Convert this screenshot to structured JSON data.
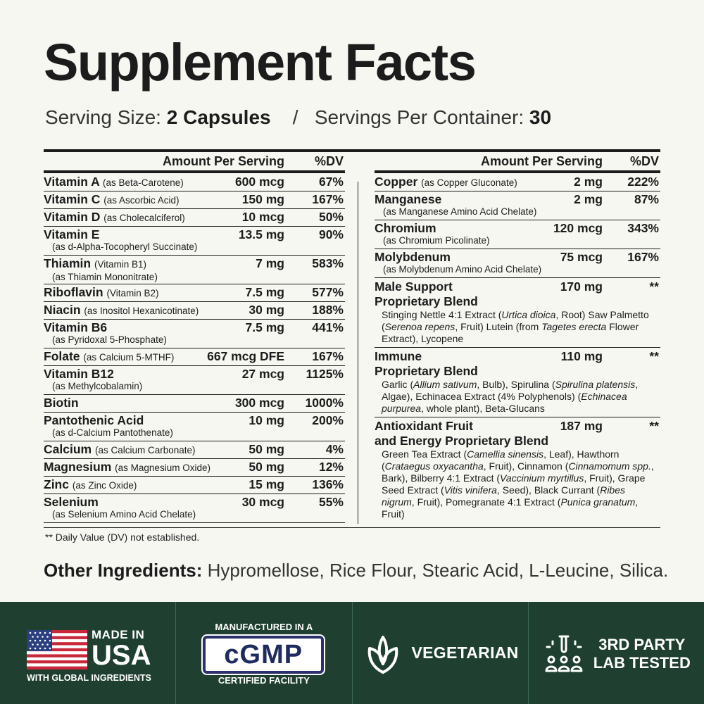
{
  "title": "Supplement Facts",
  "serving": {
    "size_label": "Serving Size: ",
    "size_value": "2 Capsules",
    "separator": "/",
    "per_container_label": "Servings Per Container: ",
    "per_container_value": "30"
  },
  "headers": {
    "amount": "Amount Per Serving",
    "dv": "%DV"
  },
  "left_rows": [
    {
      "name": "Vitamin A",
      "paren_inline": "(as Beta-Carotene)",
      "sub": "",
      "amount": "600 mcg",
      "dv": "67%"
    },
    {
      "name": "Vitamin C",
      "paren_inline": "(as Ascorbic Acid)",
      "sub": "",
      "amount": "150 mg",
      "dv": "167%"
    },
    {
      "name": "Vitamin D",
      "paren_inline": "(as Cholecalciferol)",
      "sub": "",
      "amount": "10 mcg",
      "dv": "50%"
    },
    {
      "name": "Vitamin E",
      "paren_inline": "",
      "sub": "(as d-Alpha-Tocopheryl Succinate)",
      "amount": "13.5 mg",
      "dv": "90%"
    },
    {
      "name": "Thiamin",
      "paren_inline": "(Vitamin B1)",
      "sub": "(as Thiamin Mononitrate)",
      "amount": "7 mg",
      "dv": "583%"
    },
    {
      "name": "Riboflavin",
      "paren_inline": "(Vitamin B2)",
      "sub": "",
      "amount": "7.5 mg",
      "dv": "577%"
    },
    {
      "name": "Niacin",
      "paren_inline": "(as Inositol Hexanicotinate)",
      "sub": "",
      "amount": "30 mg",
      "dv": "188%"
    },
    {
      "name": "Vitamin B6",
      "paren_inline": "",
      "sub": "(as Pyridoxal 5-Phosphate)",
      "amount": "7.5 mg",
      "dv": "441%"
    },
    {
      "name": "Folate",
      "paren_inline": "(as Calcium 5-MTHF)",
      "sub": "",
      "amount": "667 mcg DFE",
      "dv": "167%"
    },
    {
      "name": "Vitamin B12",
      "paren_inline": "",
      "sub": "(as Methylcobalamin)",
      "amount": "27 mcg",
      "dv": "1125%"
    },
    {
      "name": "Biotin",
      "paren_inline": "",
      "sub": "",
      "amount": "300 mcg",
      "dv": "1000%"
    },
    {
      "name": "Pantothenic Acid",
      "paren_inline": "",
      "sub": "(as d-Calcium Pantothenate)",
      "amount": "10 mg",
      "dv": "200%"
    },
    {
      "name": "Calcium",
      "paren_inline": "(as Calcium Carbonate)",
      "sub": "",
      "amount": "50 mg",
      "dv": "4%"
    },
    {
      "name": "Magnesium",
      "paren_inline": "(as Magnesium Oxide)",
      "sub": "",
      "amount": "50 mg",
      "dv": "12%"
    },
    {
      "name": "Zinc",
      "paren_inline": "(as Zinc Oxide)",
      "sub": "",
      "amount": "15 mg",
      "dv": "136%"
    },
    {
      "name": "Selenium",
      "paren_inline": "",
      "sub": "(as Selenium Amino Acid Chelate)",
      "amount": "30 mcg",
      "dv": "55%"
    }
  ],
  "right_rows": [
    {
      "name": "Copper",
      "paren_inline": "(as Copper Gluconate)",
      "sub": "",
      "amount": "2 mg",
      "dv": "222%"
    },
    {
      "name": "Manganese",
      "paren_inline": "",
      "sub": "(as Manganese Amino Acid Chelate)",
      "amount": "2 mg",
      "dv": "87%"
    },
    {
      "name": "Chromium",
      "paren_inline": "",
      "sub": "(as Chromium Picolinate)",
      "amount": "120 mcg",
      "dv": "343%"
    },
    {
      "name": "Molybdenum",
      "paren_inline": "",
      "sub": "(as Molybdenum Amino Acid Chelate)",
      "amount": "75 mcg",
      "dv": "167%"
    }
  ],
  "blends": [
    {
      "name_line1": "Male Support",
      "name_line2": "Proprietary Blend",
      "amount": "170 mg",
      "dv": "**",
      "desc": [
        {
          "t": "Stinging Nettle 4:1 Extract ("
        },
        {
          "t": "Urtica dioica",
          "i": true
        },
        {
          "t": ", Root) Saw Palmetto ("
        },
        {
          "t": "Serenoa repens",
          "i": true
        },
        {
          "t": ", Fruit) Lutein (from "
        },
        {
          "t": "Tagetes erecta",
          "i": true
        },
        {
          "t": " Flower Extract), Lycopene"
        }
      ]
    },
    {
      "name_line1": "Immune",
      "name_line2": "Proprietary Blend",
      "amount": "110 mg",
      "dv": "**",
      "desc": [
        {
          "t": "Garlic ("
        },
        {
          "t": "Allium sativum",
          "i": true
        },
        {
          "t": ", Bulb), Spirulina ("
        },
        {
          "t": "Spirulina platensis",
          "i": true
        },
        {
          "t": ", Algae), Echinacea Extract (4% Polyphenols) ("
        },
        {
          "t": "Echinacea purpurea",
          "i": true
        },
        {
          "t": ", whole plant), Beta-Glucans"
        }
      ]
    },
    {
      "name_line1": "Antioxidant Fruit",
      "name_line2": "and Energy Proprietary Blend",
      "amount": "187 mg",
      "dv": "**",
      "desc": [
        {
          "t": "Green Tea Extract ("
        },
        {
          "t": "Camellia sinensis",
          "i": true
        },
        {
          "t": ", Leaf), Hawthorn ("
        },
        {
          "t": "Crataegus oxyacantha",
          "i": true
        },
        {
          "t": ", Fruit), Cinnamon ("
        },
        {
          "t": "Cinnamomum spp.",
          "i": true
        },
        {
          "t": ", Bark), Bilberry 4:1 Extract ("
        },
        {
          "t": "Vaccinium myrtillus",
          "i": true
        },
        {
          "t": ", Fruit), Grape Seed Extract ("
        },
        {
          "t": "Vitis vinifera",
          "i": true
        },
        {
          "t": ", Seed), Black Currant ("
        },
        {
          "t": "Ribes nigrum",
          "i": true
        },
        {
          "t": ", Fruit), Pomegranate 4:1 Extract ("
        },
        {
          "t": "Punica granatum",
          "i": true
        },
        {
          "t": ", Fruit)"
        }
      ]
    }
  ],
  "footnote": "** Daily Value (DV) not established.",
  "other": {
    "label": "Other Ingredients:",
    "value": " Hypromellose, Rice Flour, Stearic Acid, L-Leucine, Silica."
  },
  "badges": {
    "usa_made": "MADE IN",
    "usa_big": "USA",
    "usa_sub": "WITH GLOBAL INGREDIENTS",
    "cgmp_top": "MANUFACTURED IN A",
    "cgmp": "cGMP",
    "cgmp_bottom": "CERTIFIED FACILITY",
    "veg": "VEGETARIAN",
    "lab_line1": "3RD PARTY",
    "lab_line2": "LAB TESTED",
    "colors": {
      "band": "#1f3f30",
      "flag_red": "#c8283a",
      "flag_blue": "#2b3f7e",
      "cgmp_blue": "#1f2a5e"
    }
  }
}
